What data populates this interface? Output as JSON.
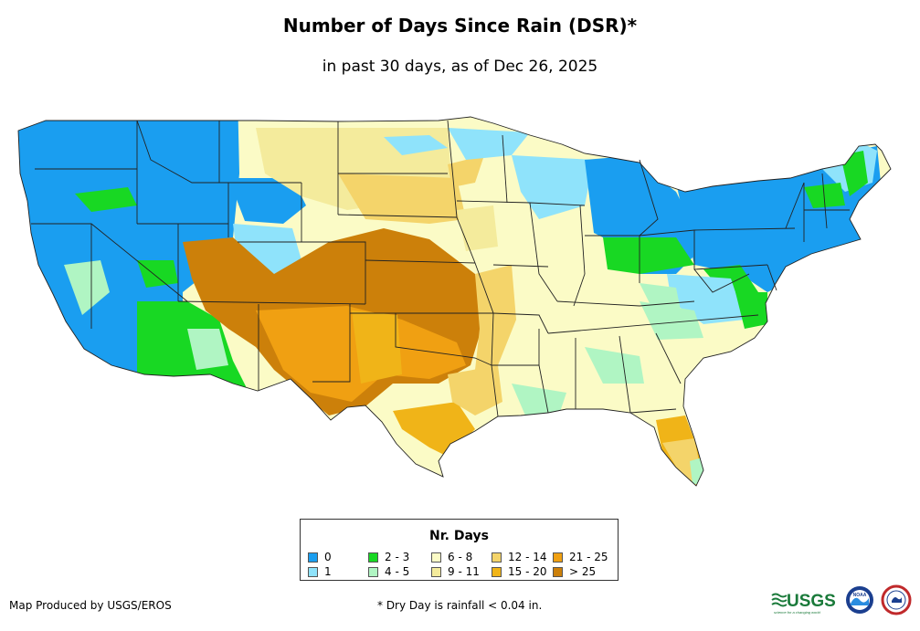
{
  "title": "Number of Days Since Rain (DSR)*",
  "subtitle": "in past 30 days, as of Dec 26, 2025",
  "legend": {
    "title": "Nr. Days",
    "items": [
      {
        "label": "0",
        "color": "#1a9ef0"
      },
      {
        "label": "1",
        "color": "#8fe3fb"
      },
      {
        "label": "2 - 3",
        "color": "#18d823"
      },
      {
        "label": "4 - 5",
        "color": "#b0f5c3"
      },
      {
        "label": "6 - 8",
        "color": "#fbfbc6"
      },
      {
        "label": "9 - 11",
        "color": "#f4eb9c"
      },
      {
        "label": "12 - 14",
        "color": "#f4d46a"
      },
      {
        "label": "15 - 20",
        "color": "#f0b418"
      },
      {
        "label": "21 - 25",
        "color": "#f0a012"
      },
      {
        "label": "> 25",
        "color": "#cc800a"
      }
    ]
  },
  "credit": "Map Produced by USGS/EROS",
  "footnote": "* Dry Day is rainfall < 0.04 in.",
  "logos": {
    "usgs_text": "USGS",
    "usgs_tagline": "science for a changing world",
    "noaa_text": "NOAA"
  }
}
